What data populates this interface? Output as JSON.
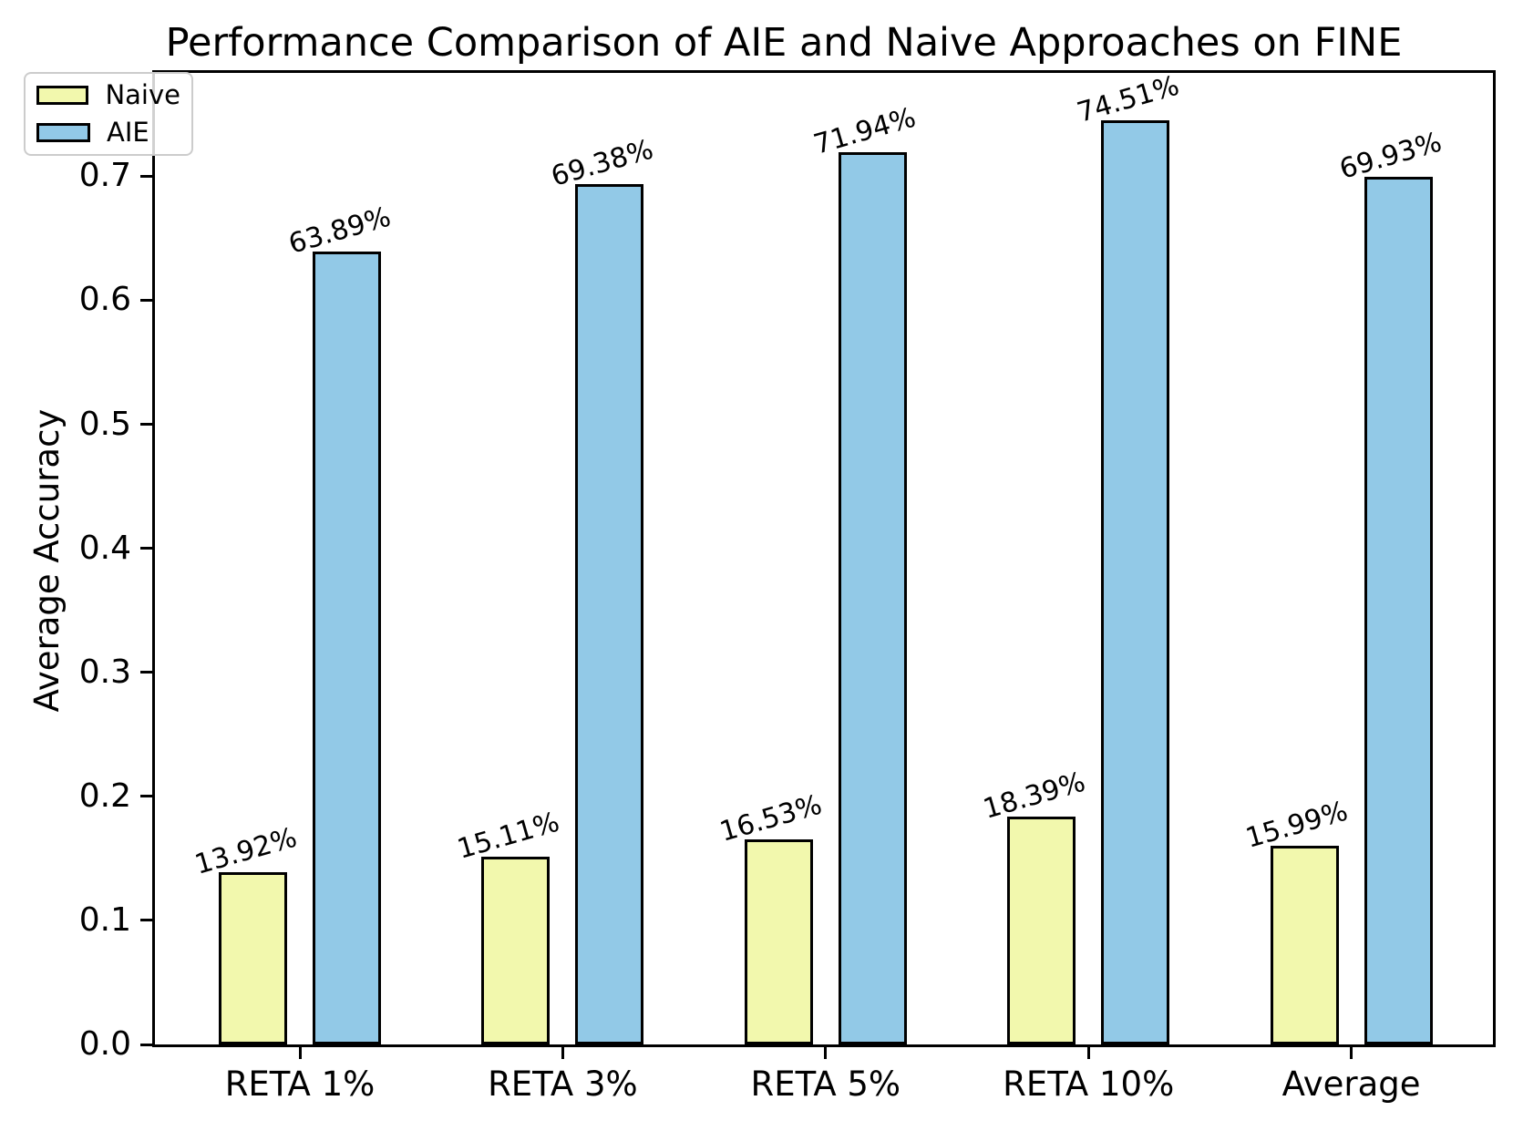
{
  "chart_data": {
    "type": "bar",
    "title": "Performance Comparison of AIE and Naive Approaches on FINE",
    "xlabel": "",
    "ylabel": "Average Accuracy",
    "categories": [
      "RETA 1%",
      "RETA 3%",
      "RETA 5%",
      "RETA 10%",
      "Average"
    ],
    "series": [
      {
        "name": "Naive",
        "color": "#F2F8AD",
        "values": [
          0.1392,
          0.1511,
          0.1653,
          0.1839,
          0.1599
        ],
        "labels": [
          "13.92%",
          "15.11%",
          "16.53%",
          "18.39%",
          "15.99%"
        ]
      },
      {
        "name": "AIE",
        "color": "#92C9E7",
        "values": [
          0.6389,
          0.6938,
          0.7194,
          0.7451,
          0.6993
        ],
        "labels": [
          "63.89%",
          "69.38%",
          "71.94%",
          "74.51%",
          "69.93%"
        ]
      }
    ],
    "bar_edge_color": "#000000",
    "ylim": [
      0,
      0.783
    ],
    "yticks": [
      "0.0",
      "0.1",
      "0.2",
      "0.3",
      "0.4",
      "0.5",
      "0.6",
      "0.7"
    ],
    "legend_position": "upper-left",
    "grid": false,
    "value_label_rotation_deg": -16
  }
}
